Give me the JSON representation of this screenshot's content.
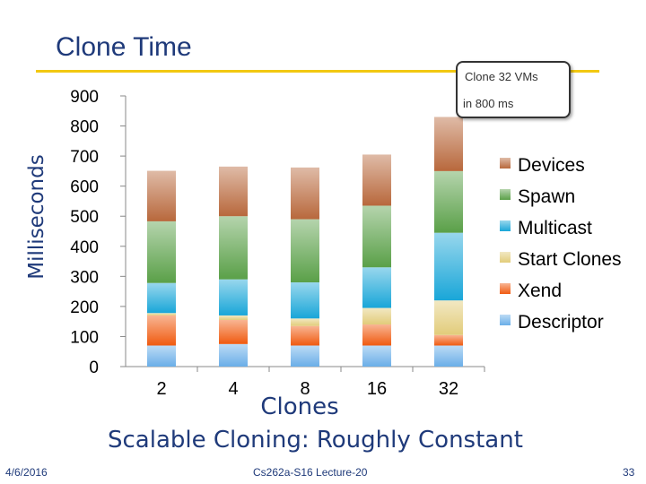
{
  "slide": {
    "title": "Clone Time",
    "subtitle": "Scalable Cloning: Roughly Constant",
    "footer_date": "4/6/2016",
    "footer_course": "Cs262a-S16 Lecture-20",
    "footer_page": "33",
    "callout_line1": "Clone 32 VMs",
    "callout_line2": "in 800 ms"
  },
  "chart_data": {
    "type": "bar",
    "stacked": true,
    "title": "",
    "xlabel": "Clones",
    "ylabel": "Milliseconds",
    "ylim": [
      0,
      900
    ],
    "yticks": [
      0,
      100,
      200,
      300,
      400,
      500,
      600,
      700,
      800,
      900
    ],
    "categories": [
      "2",
      "4",
      "8",
      "16",
      "32"
    ],
    "legend_position": "right",
    "series": [
      {
        "name": "Descriptor",
        "color": "#6aaee8",
        "values": [
          70,
          75,
          70,
          70,
          70
        ]
      },
      {
        "name": "Xend",
        "color": "#f05a10",
        "values": [
          100,
          80,
          65,
          70,
          35
        ]
      },
      {
        "name": "Start Clones",
        "color": "#e2cc7a",
        "values": [
          8,
          15,
          25,
          55,
          115
        ]
      },
      {
        "name": "Multicast",
        "color": "#19a6d8",
        "values": [
          100,
          120,
          120,
          135,
          225
        ]
      },
      {
        "name": "Spawn",
        "color": "#5aa048",
        "values": [
          205,
          210,
          210,
          205,
          205
        ]
      },
      {
        "name": "Devices",
        "color": "#b8683c",
        "values": [
          168,
          165,
          172,
          170,
          180
        ]
      }
    ]
  }
}
